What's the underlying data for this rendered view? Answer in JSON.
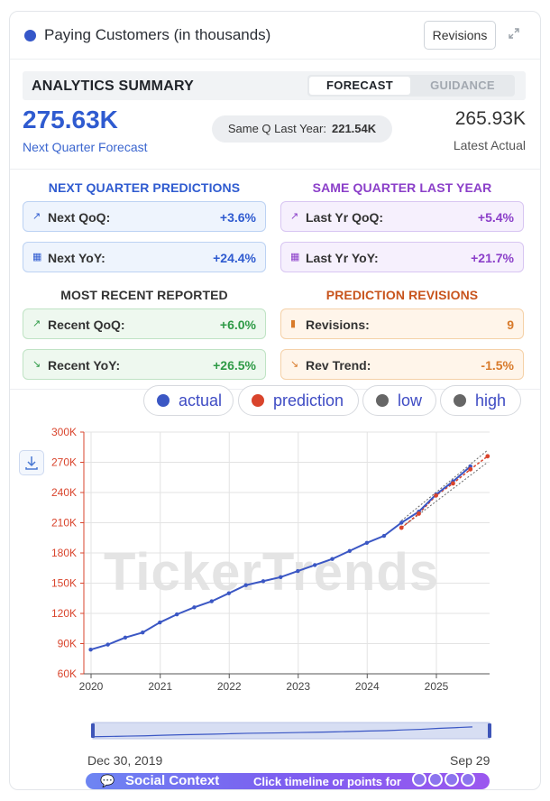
{
  "header": {
    "title": "Paying Customers (in thousands)",
    "revisions_button": "Revisions"
  },
  "summary": {
    "title": "ANALYTICS SUMMARY",
    "tab_forecast": "FORECAST",
    "tab_guidance": "GUIDANCE",
    "forecast_value": "275.63K",
    "forecast_label": "Next Quarter Forecast",
    "same_q_label": "Same Q Last Year:",
    "same_q_value": "221.54K",
    "latest_value": "265.93K",
    "latest_label": "Latest Actual"
  },
  "sections": {
    "next_quarter": {
      "title": "NEXT QUARTER PREDICTIONS",
      "qoq_label": "Next QoQ:",
      "qoq_value": "+3.6%",
      "yoy_label": "Next YoY:",
      "yoy_value": "+24.4%"
    },
    "same_quarter": {
      "title": "SAME QUARTER LAST YEAR",
      "qoq_label": "Last Yr QoQ:",
      "qoq_value": "+5.4%",
      "yoy_label": "Last Yr YoY:",
      "yoy_value": "+21.7%"
    },
    "recent": {
      "title": "MOST RECENT REPORTED",
      "qoq_label": "Recent QoQ:",
      "qoq_value": "+6.0%",
      "yoy_label": "Recent YoY:",
      "yoy_value": "+26.5%"
    },
    "revisions": {
      "title": "PREDICTION REVISIONS",
      "count_label": "Revisions:",
      "count_value": "9",
      "trend_label": "Rev Trend:",
      "trend_value": "-1.5%"
    }
  },
  "legend": {
    "actual": "actual",
    "prediction": "prediction",
    "low": "low",
    "high": "high"
  },
  "colors": {
    "actual": "#3b57c4",
    "prediction": "#d9442c",
    "low": "#666666",
    "high": "#666666",
    "accent": "#2f5bd0",
    "axis_y": "#d9442c"
  },
  "watermark": "TickerTrends",
  "range": {
    "start": "Dec 30, 2019",
    "end": "Sep 29"
  },
  "social": {
    "title": "Social Context",
    "hint": "Click timeline or points for"
  },
  "icons": {
    "download": "download-icon",
    "expand": "expand-icon",
    "chat": "chat-icon"
  },
  "chart_data": {
    "type": "line",
    "ylim": [
      60,
      300
    ],
    "y_ticks": [
      "60K",
      "90K",
      "120K",
      "150K",
      "180K",
      "210K",
      "240K",
      "270K",
      "300K"
    ],
    "x_ticks": [
      "2020",
      "2021",
      "2022",
      "2023",
      "2024",
      "2025"
    ],
    "series": [
      {
        "name": "actual",
        "x": [
          "2019-12-30",
          "2020-03-30",
          "2020-06-30",
          "2020-09-30",
          "2020-12-30",
          "2021-03-30",
          "2021-06-30",
          "2021-09-30",
          "2021-12-30",
          "2022-03-30",
          "2022-06-30",
          "2022-09-30",
          "2022-12-30",
          "2023-03-30",
          "2023-06-30",
          "2023-09-30",
          "2023-12-30",
          "2024-03-30",
          "2024-06-30",
          "2024-09-30",
          "2024-12-30",
          "2025-03-30",
          "2025-06-30"
        ],
        "values": [
          84,
          89,
          96,
          101,
          111,
          119,
          126,
          132,
          140,
          148,
          152,
          156,
          162,
          168,
          174,
          182,
          190,
          197,
          210,
          221,
          238,
          251,
          266
        ]
      },
      {
        "name": "prediction",
        "x": [
          "2024-06-30",
          "2024-09-30",
          "2024-12-30",
          "2025-03-30",
          "2025-06-30",
          "2025-09-29"
        ],
        "values": [
          205,
          219,
          237,
          249,
          263,
          276
        ]
      },
      {
        "name": "low",
        "x": [
          "2024-06-30",
          "2025-09-29"
        ],
        "values": [
          205,
          270
        ]
      },
      {
        "name": "high",
        "x": [
          "2024-06-30",
          "2025-09-29"
        ],
        "values": [
          212,
          282
        ]
      }
    ]
  }
}
